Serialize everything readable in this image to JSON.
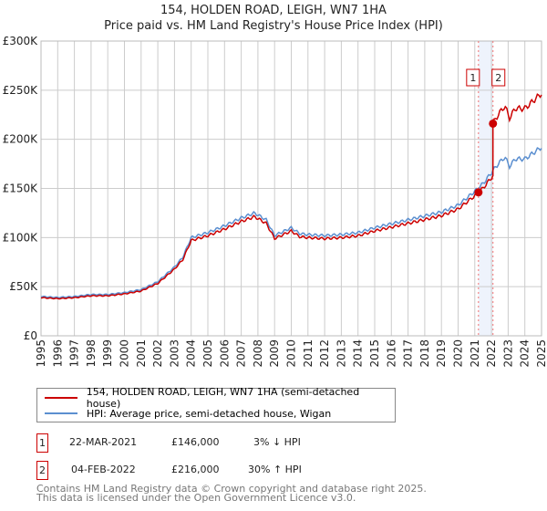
{
  "chart_data": {
    "type": "line",
    "title": "154, HOLDEN ROAD, LEIGH, WN7 1HA",
    "subtitle": "Price paid vs. HM Land Registry's House Price Index (HPI)",
    "xlim": [
      1995,
      2025
    ],
    "ylim": [
      0,
      300000
    ],
    "y_ticks": [
      {
        "v": 0,
        "label": "£0"
      },
      {
        "v": 50000,
        "label": "£50K"
      },
      {
        "v": 100000,
        "label": "£100K"
      },
      {
        "v": 150000,
        "label": "£150K"
      },
      {
        "v": 200000,
        "label": "£200K"
      },
      {
        "v": 250000,
        "label": "£250K"
      },
      {
        "v": 300000,
        "label": "£300K"
      }
    ],
    "x_ticks": [
      "1995",
      "1996",
      "1997",
      "1998",
      "1999",
      "2000",
      "2001",
      "2002",
      "2003",
      "2004",
      "2005",
      "2006",
      "2007",
      "2008",
      "2009",
      "2010",
      "2011",
      "2012",
      "2013",
      "2014",
      "2015",
      "2016",
      "2017",
      "2018",
      "2019",
      "2020",
      "2021",
      "2022",
      "2023",
      "2024",
      "2025"
    ],
    "grid": true,
    "series": [
      {
        "name": "154, HOLDEN ROAD, LEIGH, WN7 1HA (semi-detached house)",
        "color": "#cc0000"
      },
      {
        "name": "HPI: Average price, semi-detached house, Wigan",
        "color": "#5b8fd0",
        "x": [
          1995,
          1996,
          1997,
          1998,
          1999,
          2000,
          2001,
          2002,
          2003,
          2003.5,
          2004,
          2005,
          2006,
          2007,
          2007.8,
          2008.5,
          2009,
          2009.5,
          2010,
          2010.5,
          2011,
          2012,
          2013,
          2014,
          2015,
          2016,
          2017,
          2018,
          2019,
          2020,
          2021,
          2021.5,
          2022,
          2022.4,
          2022.8,
          2023.1,
          2023.4,
          2024,
          2024.5,
          2025
        ],
        "y": [
          40000,
          39000,
          40000,
          42000,
          42000,
          44000,
          47000,
          55000,
          70000,
          80000,
          100000,
          105000,
          112000,
          120000,
          125000,
          118000,
          102000,
          106000,
          110000,
          104000,
          103000,
          102000,
          103000,
          105000,
          110000,
          114000,
          118000,
          122000,
          126000,
          133000,
          147000,
          155000,
          166000,
          175000,
          182000,
          172000,
          180000,
          180000,
          186000,
          192000
        ]
      }
    ],
    "sales": [
      {
        "id": "1",
        "x": 2021.22,
        "y": 146000,
        "date": "22-MAR-2021",
        "price": "£146,000",
        "hpi": "3% ↓ HPI"
      },
      {
        "id": "2",
        "x": 2022.09,
        "y": 216000,
        "date": "04-FEB-2022",
        "price": "£216,000",
        "hpi": "30% ↑ HPI"
      }
    ]
  },
  "footer": [
    "Contains HM Land Registry data © Crown copyright and database right 2025.",
    "This data is licensed under the Open Government Licence v3.0."
  ]
}
